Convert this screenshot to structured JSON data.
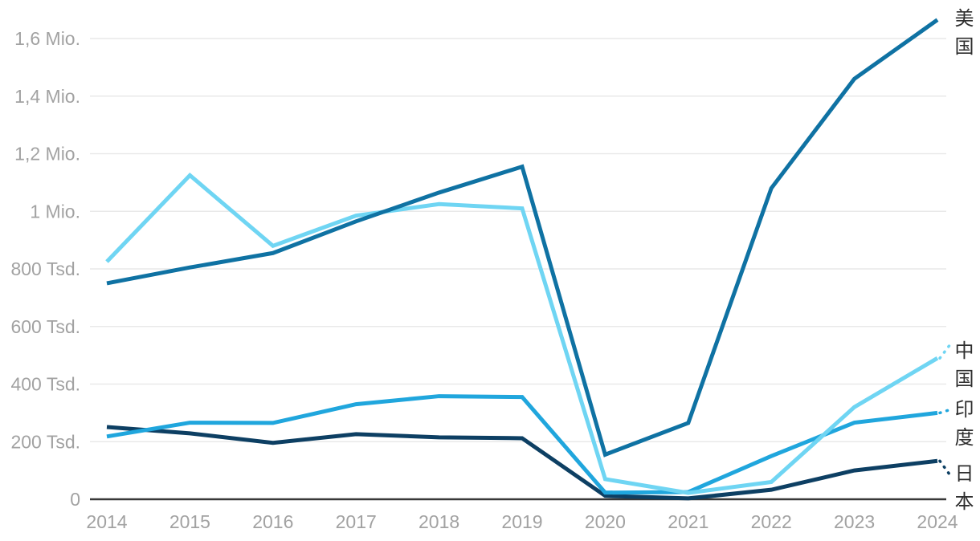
{
  "chart_data": {
    "type": "line",
    "title": "",
    "xlabel": "",
    "ylabel": "",
    "unit": "Tsd.",
    "grid": true,
    "legend_position": "right",
    "x": [
      2014,
      2015,
      2016,
      2017,
      2018,
      2019,
      2020,
      2021,
      2022,
      2023,
      2024
    ],
    "ylim": [
      0,
      1700
    ],
    "y_ticks": [
      {
        "value": 0,
        "label": "0"
      },
      {
        "value": 200,
        "label": "200 Tsd."
      },
      {
        "value": 400,
        "label": "400 Tsd."
      },
      {
        "value": 600,
        "label": "600 Tsd."
      },
      {
        "value": 800,
        "label": "800 Tsd."
      },
      {
        "value": 1000,
        "label": "1 Mio."
      },
      {
        "value": 1200,
        "label": "1,2 Mio."
      },
      {
        "value": 1400,
        "label": "1,4 Mio."
      },
      {
        "value": 1600,
        "label": "1,6 Mio."
      }
    ],
    "series": [
      {
        "id": "usa",
        "name": "美国",
        "color": "#0f72a3",
        "leader": false,
        "values": [
          750,
          805,
          855,
          965,
          1065,
          1155,
          155,
          265,
          1080,
          1460,
          1665
        ]
      },
      {
        "id": "china",
        "name": "中国",
        "color": "#6fd5f3",
        "leader": true,
        "values": [
          825,
          1125,
          880,
          985,
          1025,
          1010,
          70,
          22,
          60,
          320,
          490
        ]
      },
      {
        "id": "india",
        "name": "印度",
        "color": "#20a6dd",
        "leader": true,
        "values": [
          218,
          266,
          265,
          330,
          358,
          355,
          23,
          25,
          150,
          266,
          300
        ]
      },
      {
        "id": "japan",
        "name": "日本",
        "color": "#0d3f63",
        "leader": true,
        "values": [
          251,
          229,
          196,
          226,
          215,
          212,
          12,
          3,
          33,
          100,
          133
        ]
      }
    ]
  },
  "colors": {
    "background": "#ffffff",
    "gridline": "#e9e9e9",
    "axis_line": "#383838",
    "tick_label": "#a2a2a2",
    "series_label": "#2e2e2e"
  }
}
